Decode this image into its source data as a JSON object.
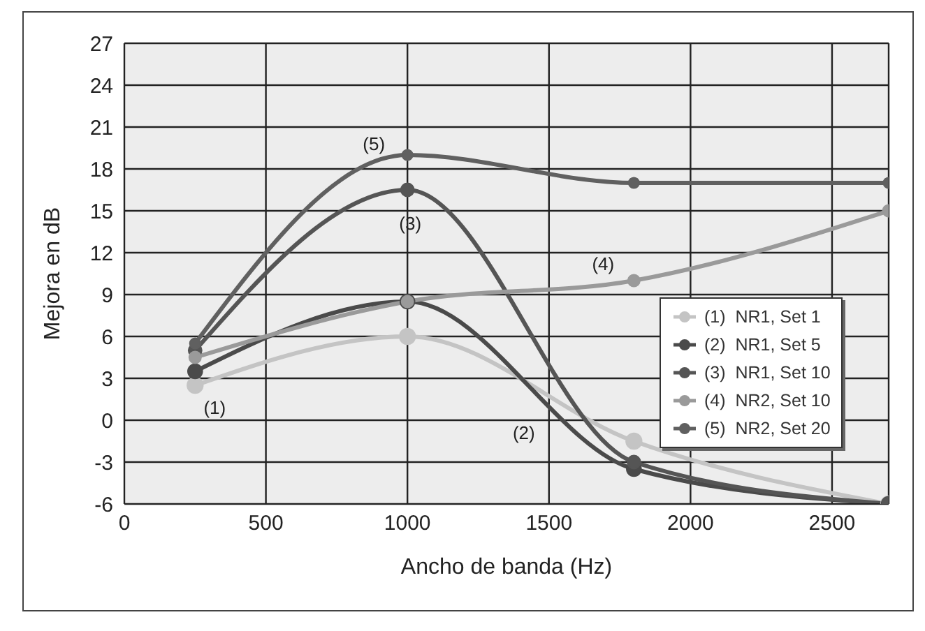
{
  "chart_data": {
    "type": "line",
    "xlabel": "Ancho de banda (Hz)",
    "ylabel": "Mejora en dB",
    "x": [
      250,
      1000,
      1800,
      2700
    ],
    "series": [
      {
        "name": "(1)  NR1, Set 1",
        "color": "#c4c4c4",
        "values": [
          2.5,
          6,
          -1.5,
          -6
        ]
      },
      {
        "name": "(2)  NR1, Set 5",
        "color": "#4a4a4a",
        "values": [
          3.5,
          8.5,
          -3.5,
          -6
        ]
      },
      {
        "name": "(3)  NR1, Set 10",
        "color": "#555555",
        "values": [
          5,
          16.5,
          -3,
          -6
        ]
      },
      {
        "name": "(4)  NR2, Set 10",
        "color": "#9a9a9a",
        "values": [
          4.5,
          8.5,
          10,
          15
        ]
      },
      {
        "name": "(5)  NR2, Set 20",
        "color": "#606060",
        "values": [
          5.5,
          19,
          17,
          17
        ]
      }
    ],
    "xlim": [
      0,
      2700
    ],
    "xticks": [
      0,
      500,
      1000,
      1500,
      2000,
      2500
    ],
    "ylim": [
      -6,
      27
    ],
    "yticks": [
      -6,
      -3,
      0,
      3,
      6,
      9,
      12,
      15,
      18,
      21,
      24,
      27
    ],
    "grid": true,
    "legend": "right",
    "marker": "circle",
    "line_style": "solid",
    "annotations": [
      {
        "text": "(1)",
        "x": 250,
        "y": 2.5
      },
      {
        "text": "(2)",
        "x": 1500,
        "y": 0.5
      },
      {
        "text": "(3)",
        "x": 1000,
        "y": 16.5
      },
      {
        "text": "(4)",
        "x": 1800,
        "y": 10
      },
      {
        "text": "(5)",
        "x": 1000,
        "y": 19
      }
    ]
  }
}
